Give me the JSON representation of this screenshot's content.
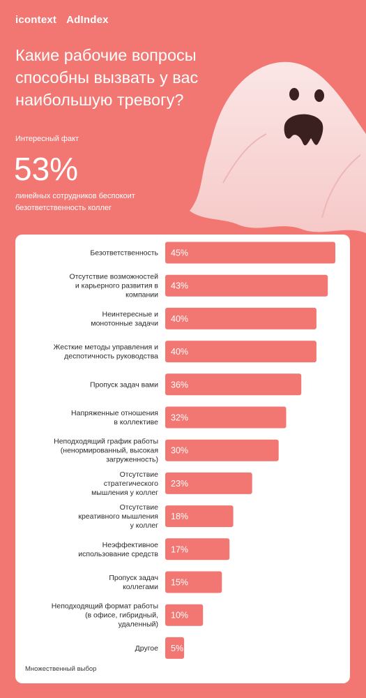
{
  "brand": {
    "logo_left": "icontext",
    "logo_right": "AdIndex"
  },
  "headline": "Какие рабочие вопросы способны вызвать у вас наибольшую тревогу?",
  "fact": {
    "label": "Интересный факт",
    "value": "53%",
    "description": "линейных сотрудников беспокоит безответственность коллег"
  },
  "colors": {
    "background": "#f27772",
    "bar": "#f27772",
    "card": "#ffffff"
  },
  "chart_data": {
    "type": "bar",
    "orientation": "horizontal",
    "unit": "%",
    "categories": [
      [
        "Безответственность"
      ],
      [
        "Отсутствие возможностей",
        "и карьерного развития в",
        "компании"
      ],
      [
        "Неинтересные и",
        "монотонные задачи"
      ],
      [
        "Жесткие методы управления и",
        "деспотичность руководства"
      ],
      [
        "Пропуск задач вами"
      ],
      [
        "Напряженные отношения",
        "в коллективе"
      ],
      [
        "Неподходящий график работы",
        "(ненормированный, высокая",
        "загруженность)"
      ],
      [
        "Отсутствие",
        "стратегического",
        "мышления у коллег"
      ],
      [
        "Отсутствие",
        "креативного мышления",
        "у коллег"
      ],
      [
        "Неэффективное",
        "использование средств"
      ],
      [
        "Пропуск задач",
        "коллегами"
      ],
      [
        "Неподходящий формат работы",
        "(в офисе, гибридный,",
        "удаленный)"
      ],
      [
        "Другое"
      ]
    ],
    "values": [
      45,
      43,
      40,
      40,
      36,
      32,
      30,
      23,
      18,
      17,
      15,
      10,
      5
    ],
    "value_labels": [
      "45%",
      "43%",
      "40%",
      "40%",
      "36%",
      "32%",
      "30%",
      "23%",
      "18%",
      "17%",
      "15%",
      "10%",
      "5%"
    ],
    "xlim": [
      0,
      45
    ]
  },
  "footnote": "Множественный выбор"
}
